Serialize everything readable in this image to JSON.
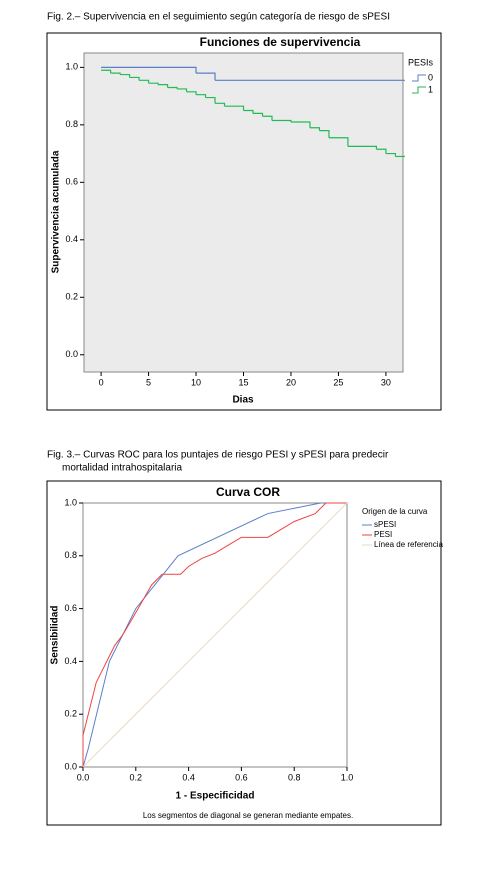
{
  "captions": [
    "Fig. 2.– Supervivencia en el seguimiento según categoría de riesgo de sPESI",
    "Fig. 3.– Curvas ROC para los puntajes de riesgo PESI y sPESI  para predecir",
    "mortalidad intrahospitalaria"
  ],
  "chart_data": [
    {
      "type": "line",
      "step": true,
      "title": "Funciones de supervivencia",
      "xlabel": "Dias",
      "ylabel": "Supervivencia acumulada",
      "legend_title": "PESIs",
      "legend": "right",
      "xlim": [
        -1.8,
        31.8
      ],
      "xticks": [
        0,
        5,
        10,
        15,
        20,
        25,
        30
      ],
      "ylim": [
        -0.06,
        1.05
      ],
      "yticks": [
        {
          "value": 0,
          "label": "0.0"
        },
        {
          "value": 0.2,
          "label": "0.2"
        },
        {
          "value": 0.4,
          "label": "0.4"
        },
        {
          "value": 0.6,
          "label": "0.6"
        },
        {
          "value": 0.8,
          "label": "0.8"
        },
        {
          "value": 1,
          "label": "1.0"
        }
      ],
      "series": [
        {
          "name": "0",
          "color": "#5b7fc7",
          "x": [
            0,
            10,
            12,
            32
          ],
          "values": [
            1.0,
            0.98,
            0.955,
            0.955
          ]
        },
        {
          "name": "1",
          "color": "#22bb55",
          "x": [
            0,
            1,
            2,
            3,
            4,
            5,
            6,
            7,
            8,
            9,
            10,
            11,
            12,
            13,
            15,
            16,
            17,
            18,
            20,
            22,
            23,
            24,
            26,
            29,
            30,
            31,
            32
          ],
          "values": [
            0.99,
            0.98,
            0.975,
            0.965,
            0.955,
            0.945,
            0.94,
            0.93,
            0.925,
            0.915,
            0.905,
            0.895,
            0.875,
            0.865,
            0.85,
            0.84,
            0.83,
            0.815,
            0.81,
            0.79,
            0.78,
            0.755,
            0.725,
            0.715,
            0.7,
            0.69,
            0.69
          ]
        }
      ]
    },
    {
      "type": "line",
      "title": "Curva COR",
      "xlabel": "1 - Especificidad",
      "ylabel": "Sensibilidad",
      "legend_title": "Origen de la curva",
      "legend": "right",
      "note": "Los segmentos de diagonal se generan mediante empates.",
      "xlim": [
        0,
        1
      ],
      "xticks": [
        {
          "value": 0,
          "label": "0.0"
        },
        {
          "value": 0.2,
          "label": "0.2"
        },
        {
          "value": 0.4,
          "label": "0.4"
        },
        {
          "value": 0.6,
          "label": "0.6"
        },
        {
          "value": 0.8,
          "label": "0.8"
        },
        {
          "value": 1,
          "label": "1.0"
        }
      ],
      "ylim": [
        0,
        1
      ],
      "yticks": [
        {
          "value": 0,
          "label": "0.0"
        },
        {
          "value": 0.2,
          "label": "0.2"
        },
        {
          "value": 0.4,
          "label": "0.4"
        },
        {
          "value": 0.6,
          "label": "0.6"
        },
        {
          "value": 0.8,
          "label": "0.8"
        },
        {
          "value": 1,
          "label": "1.0"
        }
      ],
      "series": [
        {
          "name": "sPESI",
          "color": "#5b7fc7",
          "x": [
            0,
            0.02,
            0.1,
            0.2,
            0.36,
            0.7,
            0.9,
            1
          ],
          "values": [
            0,
            0.07,
            0.4,
            0.6,
            0.8,
            0.96,
            1,
            1
          ]
        },
        {
          "name": "PESI",
          "color": "#ee4444",
          "x": [
            0,
            0,
            0.01,
            0.02,
            0.03,
            0.04,
            0.05,
            0.07,
            0.09,
            0.12,
            0.15,
            0.18,
            0.22,
            0.26,
            0.3,
            0.37,
            0.4,
            0.45,
            0.5,
            0.55,
            0.6,
            0.7,
            0.75,
            0.8,
            0.88,
            0.92,
            1
          ],
          "values": [
            0,
            0.12,
            0.16,
            0.2,
            0.24,
            0.28,
            0.32,
            0.36,
            0.4,
            0.46,
            0.5,
            0.55,
            0.62,
            0.69,
            0.73,
            0.73,
            0.76,
            0.79,
            0.81,
            0.84,
            0.87,
            0.87,
            0.9,
            0.93,
            0.96,
            1,
            1
          ]
        },
        {
          "name": "Línea de referencia",
          "color": "#e8dcc0",
          "x": [
            0,
            1
          ],
          "values": [
            0,
            1
          ]
        }
      ]
    }
  ]
}
